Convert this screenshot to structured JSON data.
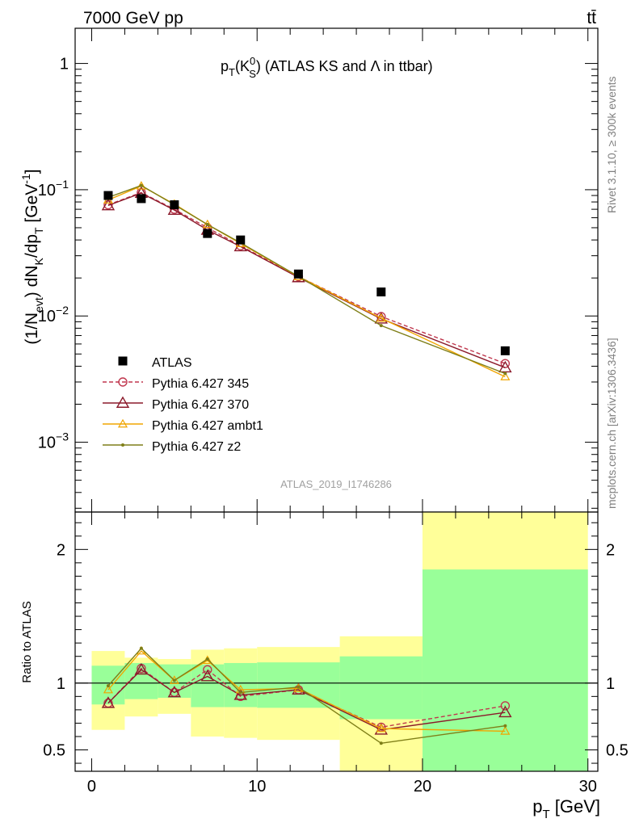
{
  "header": {
    "energy_label": "7000 GeV pp",
    "process_label": "tt̄"
  },
  "side_labels": {
    "rivet": "Rivet 3.1.10, ≥ 300k events",
    "mcplots": "mcplots.cern.ch [arXiv:1306.3436]"
  },
  "watermark": "ATLAS_2019_I1746286",
  "chart_data": [
    {
      "type": "line",
      "panel": "main",
      "title": {
        "pre": "p",
        "sub1": "T",
        "mid": "(K",
        "sup2": "0",
        "sub2": "S",
        "post": ") (ATLAS KS and Λ in ttbar)"
      },
      "ylabel": {
        "a": "(1/N",
        "a_sub": "evt",
        "b": ") dN",
        "b_sub": "K",
        "c": "/dp",
        "c_sub": "T",
        "d": " [GeV",
        "d_sup": "-1",
        "e": "]"
      },
      "yscale": "log",
      "xlim": [
        -1,
        30.6
      ],
      "ylim": [
        0.00028,
        1.9
      ],
      "y_ticks": [
        0.001,
        0.01,
        0.1,
        1
      ],
      "y_tick_labels": [
        {
          "base": "10",
          "exp": "−3"
        },
        {
          "base": "10",
          "exp": "−2"
        },
        {
          "base": "10",
          "exp": "−1"
        },
        {
          "base": "1",
          "exp": ""
        }
      ],
      "legend_position": "lower-left",
      "x": [
        1,
        3,
        5,
        7,
        9,
        12.5,
        17.5,
        25
      ],
      "data": {
        "name": "ATLAS",
        "color": "#000000",
        "values": [
          0.09,
          0.085,
          0.076,
          0.045,
          0.04,
          0.0215,
          0.0155,
          0.0053
        ]
      },
      "series": [
        {
          "name": "Pythia 6.427 345",
          "color": "#c0374e",
          "marker": "circle-open",
          "dashed": true,
          "values": [
            0.076,
            0.095,
            0.07,
            0.05,
            0.036,
            0.0205,
            0.0099,
            0.0042
          ]
        },
        {
          "name": "Pythia 6.427 370",
          "color": "#8b1a2b",
          "marker": "triangle-open",
          "dashed": false,
          "values": [
            0.075,
            0.094,
            0.069,
            0.048,
            0.0355,
            0.0202,
            0.0095,
            0.0039
          ]
        },
        {
          "name": "Pythia 6.427 ambt1",
          "color": "#f0a500",
          "marker": "triangle-open-small",
          "dashed": false,
          "values": [
            0.083,
            0.107,
            0.077,
            0.053,
            0.0375,
            0.0205,
            0.0096,
            0.0033
          ]
        },
        {
          "name": "Pythia 6.427 z2",
          "color": "#7f7f18",
          "marker": "dot",
          "dashed": false,
          "values": [
            0.087,
            0.108,
            0.076,
            0.053,
            0.038,
            0.0206,
            0.0084,
            0.0035
          ]
        }
      ]
    },
    {
      "type": "line",
      "panel": "ratio",
      "ylabel": "Ratio to ATLAS",
      "xlabel": {
        "pre": "p",
        "sub": "T",
        "post": " [GeV]"
      },
      "xlim": [
        -1,
        30.6
      ],
      "ylim": [
        0.34,
        2.28
      ],
      "x_ticks": [
        0,
        10,
        20,
        30
      ],
      "y_ticks": [
        0.5,
        1,
        2
      ],
      "y_tick_labels": [
        "0.5",
        "1",
        "2"
      ],
      "uncertainty_bands": [
        {
          "x0": 0,
          "x1": 2,
          "green": [
            0.84,
            1.13
          ],
          "yellow": [
            0.65,
            1.24
          ]
        },
        {
          "x0": 2,
          "x1": 4,
          "green": [
            0.88,
            1.15
          ],
          "yellow": [
            0.75,
            1.19
          ]
        },
        {
          "x0": 4,
          "x1": 6,
          "green": [
            0.89,
            1.14
          ],
          "yellow": [
            0.77,
            1.18
          ]
        },
        {
          "x0": 6,
          "x1": 8,
          "green": [
            0.82,
            1.14
          ],
          "yellow": [
            0.6,
            1.25
          ]
        },
        {
          "x0": 8,
          "x1": 10,
          "green": [
            0.82,
            1.15
          ],
          "yellow": [
            0.59,
            1.26
          ]
        },
        {
          "x0": 10,
          "x1": 15,
          "green": [
            0.815,
            1.155
          ],
          "yellow": [
            0.575,
            1.27
          ]
        },
        {
          "x0": 15,
          "x1": 20,
          "green": [
            0.73,
            1.2
          ],
          "yellow": [
            0.34,
            1.35
          ]
        },
        {
          "x0": 20,
          "x1": 30,
          "green": [
            0.34,
            1.85
          ],
          "yellow": [
            0.34,
            2.28
          ]
        }
      ],
      "x": [
        1,
        3,
        5,
        7,
        9,
        12.5,
        17.5,
        25
      ],
      "series": [
        {
          "name": "Pythia 6.427 345",
          "color": "#c0374e",
          "marker": "circle-open",
          "dashed": true,
          "values": [
            0.85,
            1.11,
            0.93,
            1.1,
            0.9,
            0.95,
            0.67,
            0.83
          ]
        },
        {
          "name": "Pythia 6.427 370",
          "color": "#8b1a2b",
          "marker": "triangle-open",
          "dashed": false,
          "values": [
            0.85,
            1.1,
            0.93,
            1.05,
            0.91,
            0.95,
            0.65,
            0.78
          ]
        },
        {
          "name": "Pythia 6.427 ambt1",
          "color": "#f0a500",
          "marker": "triangle-open-small",
          "dashed": false,
          "values": [
            0.95,
            1.24,
            1.02,
            1.17,
            0.95,
            0.96,
            0.66,
            0.64
          ]
        },
        {
          "name": "Pythia 6.427 z2",
          "color": "#7f7f18",
          "marker": "dot",
          "dashed": false,
          "values": [
            0.98,
            1.26,
            1.02,
            1.18,
            0.93,
            0.97,
            0.55,
            0.68
          ]
        }
      ]
    }
  ]
}
